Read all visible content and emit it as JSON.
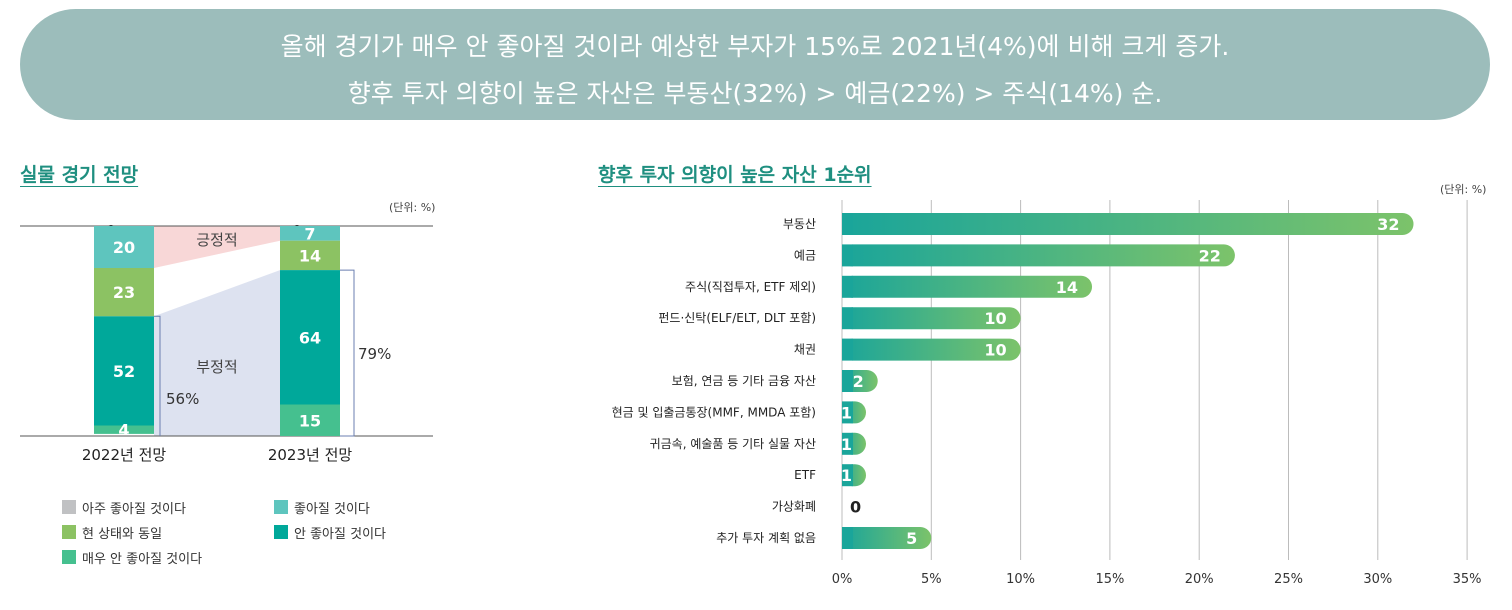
{
  "header": {
    "line1": "올해 경기가 매우 안 좋아질 것이라 예상한 부자가 15%로 2021년(4%)에 비해 크게 증가.",
    "line2": "향후 투자 의향이 높은 자산은 부동산(32%) > 예금(22%) > 주식(14%) 순."
  },
  "colors": {
    "very_good": "#c0c1c3",
    "good": "#5ec5be",
    "same": "#8cc263",
    "bad": "#00a89a",
    "very_bad": "#45c08f",
    "positive_band": "#f8d7d7",
    "negative_band": "#dde2f0",
    "bar_start": "#1aa59a",
    "bar_end": "#7cc36a"
  },
  "chart_data": [
    {
      "type": "bar",
      "stacked": true,
      "title": "실물 경기 전망",
      "unit": "(단위: %)",
      "categories": [
        "2022년 전망",
        "2023년 전망"
      ],
      "series": [
        {
          "name": "아주 좋아질 것이다",
          "values": [
            0,
            0
          ]
        },
        {
          "name": "좋아질 것이다",
          "values": [
            20,
            7
          ]
        },
        {
          "name": "현 상태와 동일",
          "values": [
            23,
            14
          ]
        },
        {
          "name": "안 좋아질 것이다",
          "values": [
            52,
            64
          ]
        },
        {
          "name": "매우 안 좋아질 것이다",
          "values": [
            4,
            15
          ]
        }
      ],
      "annotations": {
        "positive_label": "긍정적",
        "negative_label": "부정적",
        "negative_total_2022": "56%",
        "negative_total_2023": "79%"
      },
      "legend_position": "bottom"
    },
    {
      "type": "bar",
      "orientation": "horizontal",
      "title": "향후 투자 의향이 높은 자산 1순위",
      "unit": "(단위: %)",
      "categories": [
        "부동산",
        "예금",
        "주식(직접투자, ETF 제외)",
        "펀드·신탁(ELF/ELT, DLT 포함)",
        "채권",
        "보험, 연금 등 기타 금융 자산",
        "현금 및 입출금통장(MMF, MMDA 포함)",
        "귀금속, 예술품 등 기타 실물 자산",
        "ETF",
        "가상화폐",
        "추가 투자 계획 없음"
      ],
      "values": [
        32,
        22,
        14,
        10,
        10,
        2,
        1,
        1,
        1,
        0,
        5
      ],
      "xlim": [
        0,
        35
      ],
      "xticks": [
        "0%",
        "5%",
        "10%",
        "15%",
        "20%",
        "25%",
        "30%",
        "35%"
      ],
      "grid": true
    }
  ]
}
